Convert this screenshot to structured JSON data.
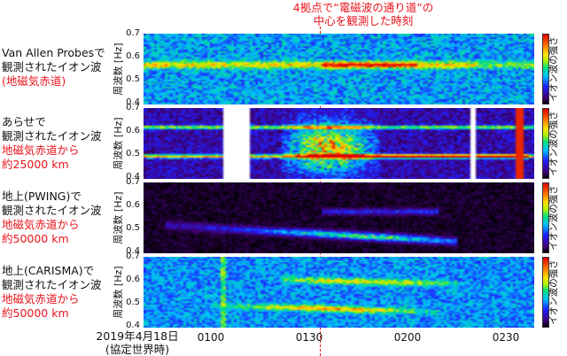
{
  "chart_data": [
    {
      "type": "heatmap",
      "title": "4拠点で“電磁波の通り道”の中心を観測した時刻",
      "panel": "Van Allen Probes",
      "label_lines": [
        "Van Allen Probesで",
        "観測されたイオン波"
      ],
      "label_red": [
        "(地磁気赤道)"
      ],
      "ylabel": "周波数 [Hz]",
      "yticks": [
        "0.7",
        "0.6",
        "0.5",
        "0.4"
      ],
      "ylim": [
        0.4,
        0.7
      ],
      "colorbar_label": "イオン波の強さ",
      "features": "Narrow band near 0.57 Hz across the full interval, most intense (red) around 0150–0205 UT"
    },
    {
      "type": "heatmap",
      "panel": "Arase",
      "label_lines": [
        "あらせで",
        "観測されたイオン波"
      ],
      "label_red": [
        "地磁気赤道から",
        "約25000 km"
      ],
      "ylabel": "周波数 [Hz]",
      "yticks": [
        "0.7",
        "0.6",
        "0.5",
        "0.4"
      ],
      "ylim": [
        0.4,
        0.7
      ],
      "colorbar_label": "イオン波の強さ",
      "features": "Strong intense bursts 0.45–0.65 Hz around 0115–0140 UT; horizontal lines at 0.62 Hz and 0.5 Hz; data gaps (white) near 0105–0112 and 0217"
    },
    {
      "type": "heatmap",
      "panel": "PWING (ground)",
      "label_lines": [
        "地上(PWING)で",
        "観測されたイオン波"
      ],
      "label_red": [
        "地磁気赤道から",
        "約50000 km"
      ],
      "ylabel": "周波数 [Hz]",
      "yticks": [
        "0.7",
        "0.6",
        "0.5",
        "0.4"
      ],
      "ylim": [
        0.4,
        0.7
      ],
      "colorbar_label": "イオン波の強さ",
      "features": "Falling-tone band from ~0.52 Hz at 0050 to ~0.45 Hz at 0150 UT, strongest around 0130; weaker band near 0.58 Hz 0120–0145"
    },
    {
      "type": "heatmap",
      "panel": "CARISMA (ground)",
      "label_lines": [
        "地上(CARISMA)で",
        "観測されたイオン波"
      ],
      "label_red": [
        "地磁気赤道から",
        "約50000 km"
      ],
      "ylabel": "周波数 [Hz]",
      "yticks": [
        "0.7",
        "0.6",
        "0.5",
        "0.4"
      ],
      "ylim": [
        0.4,
        0.7
      ],
      "colorbar_label": "イオン波の強さ",
      "features": "Two bands: ~0.62→0.57 Hz and ~0.52→0.47 Hz, 0110–0215 UT, strongest 0125–0150"
    }
  ],
  "title_lines": [
    "4拠点で“電磁波の通り道”の",
    "中心を観測した時刻"
  ],
  "xaxis": {
    "date_lines": [
      "2019年4月18日",
      "(協定世界時)"
    ],
    "ticks": [
      "0100",
      "0130",
      "0200",
      "0230"
    ],
    "marker_time": "~0132"
  },
  "colors": {
    "accent_red": "#e8141c"
  }
}
